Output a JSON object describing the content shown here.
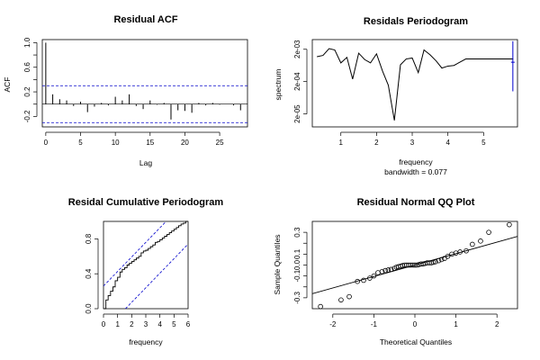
{
  "chart_data": [
    {
      "id": "acf",
      "type": "bar",
      "title": "Residual ACF",
      "xlabel": "Lag",
      "ylabel": "ACF",
      "xlim": [
        -0.5,
        29
      ],
      "ylim": [
        -0.37,
        1.05
      ],
      "x_ticks": [
        0,
        5,
        10,
        15,
        20,
        25
      ],
      "y_ticks": [
        -0.2,
        0.0,
        0.2,
        0.4,
        0.6,
        0.8,
        1.0
      ],
      "y_tick_labels": [
        "-0.2",
        "0.2",
        "0.6",
        "1.0"
      ],
      "y_tick_label_values": [
        -0.2,
        0.2,
        0.6,
        1.0
      ],
      "lags": [
        0,
        1,
        2,
        3,
        4,
        5,
        6,
        7,
        8,
        9,
        10,
        11,
        12,
        13,
        14,
        15,
        16,
        17,
        18,
        19,
        20,
        21,
        22,
        23,
        24,
        25,
        26,
        27,
        28
      ],
      "values": [
        1.0,
        0.16,
        0.08,
        0.06,
        -0.03,
        0.04,
        -0.13,
        -0.04,
        0.02,
        -0.02,
        0.12,
        0.06,
        0.16,
        -0.03,
        -0.08,
        0.06,
        -0.01,
        0.02,
        -0.25,
        -0.1,
        -0.11,
        -0.14,
        0.02,
        -0.02,
        0.02,
        -0.01,
        0.0,
        -0.02,
        -0.1
      ],
      "ci": [
        0.3,
        -0.3
      ],
      "colors": {
        "ci": "#0000cc",
        "bars": "#000000"
      }
    },
    {
      "id": "periodogram",
      "type": "line",
      "title": "Residals Periodogram",
      "xlabel": "frequency",
      "subtitle": "bandwidth = 0.077",
      "ylabel": "spectrum",
      "log_y": true,
      "xlim": [
        0.2,
        5.95
      ],
      "ylim_log10": [
        -5.1,
        -2.4
      ],
      "x_ticks": [
        1,
        2,
        3,
        4,
        5
      ],
      "y_ticks": [
        2e-05,
        0.0002,
        0.002
      ],
      "y_tick_labels": [
        "2e-05",
        "2e-04",
        "2e-03"
      ],
      "x": [
        0.33,
        0.5,
        0.67,
        0.83,
        1.0,
        1.17,
        1.33,
        1.5,
        1.67,
        1.83,
        2.0,
        2.17,
        2.33,
        2.5,
        2.67,
        2.83,
        3.0,
        3.17,
        3.33,
        3.5,
        3.67,
        3.83,
        4.0,
        4.17,
        4.33,
        4.5,
        4.67,
        4.83,
        5.0,
        5.17,
        5.33,
        5.5,
        5.67,
        5.83
      ],
      "y_log10": [
        -2.93,
        -2.89,
        -2.68,
        -2.72,
        -3.12,
        -2.95,
        -3.62,
        -2.82,
        -3.02,
        -3.12,
        -2.84,
        -3.38,
        -3.81,
        -4.9,
        -3.18,
        -3.0,
        -2.97,
        -3.42,
        -2.72,
        -2.87,
        -3.06,
        -3.28,
        -3.22,
        -3.2,
        -3.1,
        -3.0,
        -3.0,
        -3.0,
        -3.0,
        -3.0,
        -3.0,
        -3.0,
        -3.0,
        -3.0
      ],
      "ci_bar": {
        "x": 5.82,
        "center_log10": -3.1,
        "low_log10": -4.0,
        "high_log10": -2.45
      },
      "colors": {
        "line": "#000000",
        "ci": "#0000cc"
      }
    },
    {
      "id": "cumperiodogram",
      "type": "line",
      "title": "Residal Cumulative Periodogram",
      "xlabel": "frequency",
      "xlim": [
        0,
        6
      ],
      "ylim": [
        0,
        1
      ],
      "x_ticks": [
        0,
        1,
        2,
        3,
        4,
        5,
        6
      ],
      "y_ticks": [
        0.0,
        0.4,
        0.8
      ],
      "y_tick_labels": [
        "0.0",
        "0.4",
        "0.8"
      ],
      "step_x": [
        0.0,
        0.17,
        0.33,
        0.5,
        0.67,
        0.83,
        1.0,
        1.17,
        1.33,
        1.5,
        1.67,
        1.83,
        2.0,
        2.17,
        2.33,
        2.5,
        2.67,
        2.83,
        3.0,
        3.17,
        3.33,
        3.5,
        3.67,
        3.83,
        4.0,
        4.17,
        4.33,
        4.5,
        4.67,
        4.83,
        5.0,
        5.17,
        5.33,
        5.5,
        5.67,
        5.83,
        6.0
      ],
      "step_y": [
        0.0,
        0.1,
        0.15,
        0.2,
        0.25,
        0.32,
        0.36,
        0.42,
        0.45,
        0.47,
        0.5,
        0.52,
        0.54,
        0.56,
        0.58,
        0.6,
        0.64,
        0.66,
        0.67,
        0.69,
        0.71,
        0.73,
        0.76,
        0.77,
        0.79,
        0.81,
        0.83,
        0.85,
        0.87,
        0.89,
        0.91,
        0.93,
        0.95,
        0.97,
        0.98,
        1.0,
        1.0
      ],
      "band_offset": 0.26,
      "colors": {
        "line": "#000000",
        "band": "#0000cc"
      }
    },
    {
      "id": "qq",
      "type": "scatter",
      "title": "Residual Normal QQ Plot",
      "xlabel": "Theoretical Quantiles",
      "ylabel": "Sample Quantiles",
      "xlim": [
        -2.5,
        2.5
      ],
      "ylim": [
        -0.4,
        0.4
      ],
      "x_ticks": [
        -2,
        -1,
        0,
        1,
        2
      ],
      "y_ticks": [
        -0.3,
        -0.2,
        -0.1,
        0.0,
        0.1,
        0.2,
        0.3
      ],
      "y_tick_labels": [
        "-0.3",
        "-0.1",
        "0.0",
        "0.1",
        "0.3"
      ],
      "y_tick_label_values": [
        -0.3,
        -0.1,
        0.0,
        0.1,
        0.3
      ],
      "points_x": [
        -2.3,
        -1.8,
        -1.6,
        -1.4,
        -1.25,
        -1.1,
        -1.0,
        -0.9,
        -0.8,
        -0.72,
        -0.65,
        -0.58,
        -0.5,
        -0.45,
        -0.4,
        -0.35,
        -0.3,
        -0.25,
        -0.2,
        -0.15,
        -0.1,
        -0.05,
        0.0,
        0.05,
        0.1,
        0.15,
        0.2,
        0.25,
        0.3,
        0.35,
        0.4,
        0.45,
        0.5,
        0.58,
        0.65,
        0.72,
        0.8,
        0.9,
        1.0,
        1.1,
        1.25,
        1.4,
        1.6,
        1.8,
        2.3
      ],
      "points_y": [
        -0.38,
        -0.32,
        -0.29,
        -0.15,
        -0.14,
        -0.12,
        -0.1,
        -0.07,
        -0.06,
        -0.05,
        -0.045,
        -0.04,
        -0.03,
        -0.02,
        -0.015,
        -0.01,
        -0.005,
        0.0,
        0.0,
        0.0,
        0.0,
        0.0,
        0.0,
        0.0,
        0.005,
        0.01,
        0.01,
        0.015,
        0.02,
        0.02,
        0.02,
        0.025,
        0.03,
        0.04,
        0.05,
        0.06,
        0.08,
        0.1,
        0.11,
        0.12,
        0.13,
        0.19,
        0.22,
        0.3,
        0.37
      ],
      "line": {
        "slope": 0.105,
        "intercept": 0.0
      },
      "colors": {
        "points": "#000000",
        "line": "#000000"
      }
    }
  ]
}
